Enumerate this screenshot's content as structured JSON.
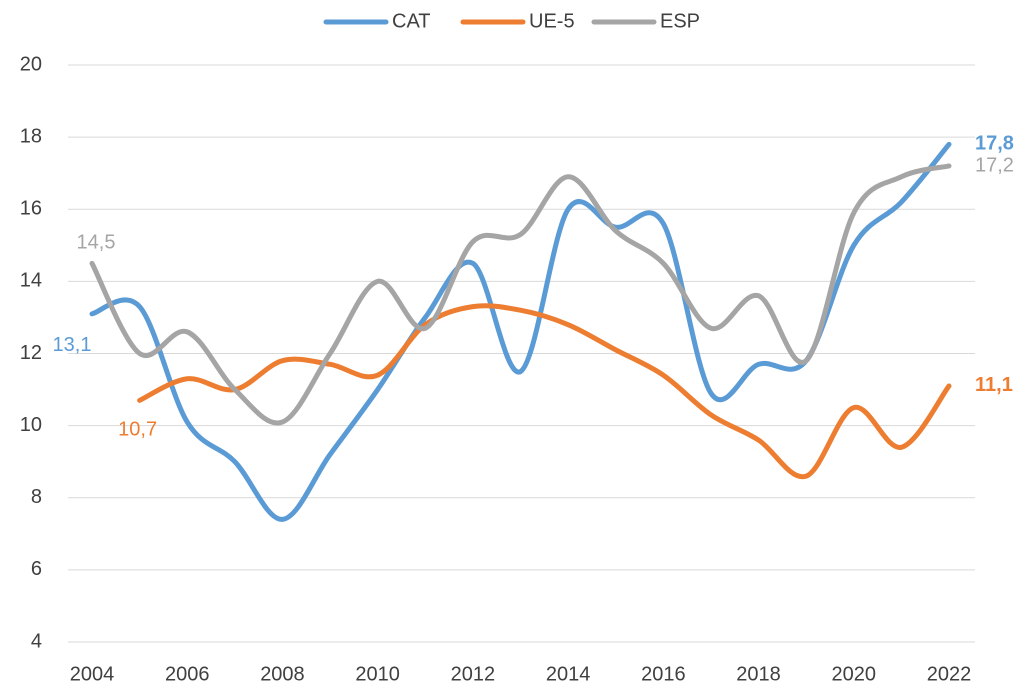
{
  "chart_data": {
    "type": "line",
    "x": [
      2004,
      2005,
      2006,
      2007,
      2008,
      2009,
      2010,
      2011,
      2012,
      2013,
      2014,
      2015,
      2016,
      2017,
      2018,
      2019,
      2020,
      2021,
      2022
    ],
    "xlim": [
      2004,
      2022
    ],
    "xticks": [
      2004,
      2006,
      2008,
      2010,
      2012,
      2014,
      2016,
      2018,
      2020,
      2022
    ],
    "ylim": [
      4,
      20
    ],
    "yticks": [
      4,
      6,
      8,
      10,
      12,
      14,
      16,
      18,
      20
    ],
    "grid": true,
    "legend": "top",
    "series": [
      {
        "name": "CAT",
        "color": "#5b9bd5",
        "values": [
          13.1,
          13.3,
          10.1,
          9.0,
          7.4,
          9.2,
          11.0,
          13.0,
          14.5,
          11.5,
          16.0,
          15.5,
          15.6,
          10.9,
          11.7,
          11.8,
          15.0,
          16.2,
          17.8
        ],
        "value_labels": [
          "13,1",
          null,
          null,
          null,
          null,
          null,
          null,
          null,
          null,
          null,
          null,
          null,
          null,
          null,
          null,
          null,
          null,
          null,
          "17,8"
        ]
      },
      {
        "name": "UE-5",
        "color": "#ed7d31",
        "values": [
          null,
          10.7,
          11.3,
          11.0,
          11.8,
          11.7,
          11.4,
          12.8,
          13.3,
          13.2,
          12.8,
          12.1,
          11.4,
          10.3,
          9.6,
          8.6,
          10.5,
          9.4,
          11.1
        ],
        "value_labels": [
          null,
          "10,7",
          null,
          null,
          null,
          null,
          null,
          null,
          null,
          null,
          null,
          null,
          null,
          null,
          null,
          null,
          null,
          null,
          "11,1"
        ]
      },
      {
        "name": "ESP",
        "color": "#a5a5a5",
        "values": [
          14.5,
          12.0,
          12.6,
          11.0,
          10.1,
          12.0,
          14.0,
          12.7,
          15.1,
          15.3,
          16.9,
          15.4,
          14.5,
          12.7,
          13.6,
          11.8,
          15.9,
          16.9,
          17.2
        ],
        "value_labels": [
          "14,5",
          null,
          null,
          null,
          null,
          null,
          null,
          null,
          null,
          null,
          null,
          null,
          null,
          null,
          null,
          null,
          null,
          null,
          "17,2"
        ]
      }
    ]
  }
}
